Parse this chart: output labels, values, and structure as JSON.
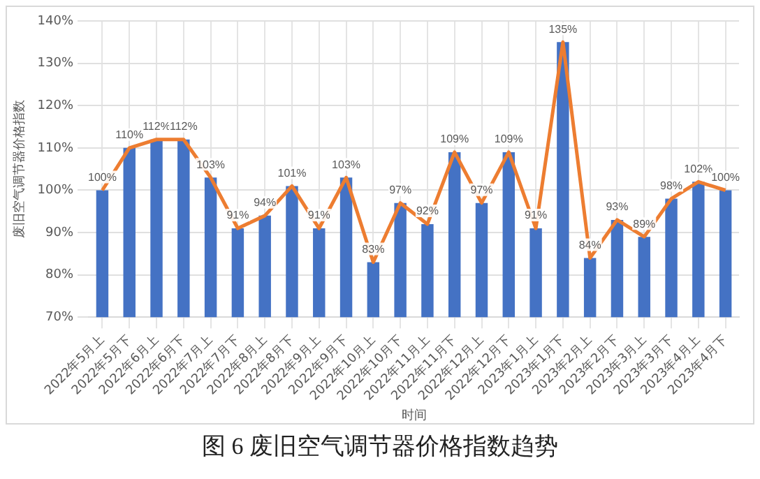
{
  "chart_data": {
    "type": "bar",
    "title": "图 6  废旧空气调节器价格指数趋势",
    "xlabel": "时间",
    "ylabel": "废旧空气调节器价格指数",
    "categories": [
      "2022年5月上",
      "2022年5月下",
      "2022年6月上",
      "2022年6月下",
      "2022年7月上",
      "2022年7月下",
      "2022年8月上",
      "2022年8月下",
      "2022年9月上",
      "2022年9月下",
      "2022年10月上",
      "2022年10月下",
      "2022年11月上",
      "2022年11月下",
      "2022年12月上",
      "2022年12月下",
      "2023年1月上",
      "2023年1月下",
      "2023年2月上",
      "2023年2月下",
      "2023年3月上",
      "2023年3月下",
      "2023年4月上",
      "2023年4月下"
    ],
    "series": [
      {
        "color": "#4472c4",
        "values": [
          100,
          110,
          112,
          112,
          103,
          91,
          94,
          101,
          91,
          103,
          83,
          97,
          92,
          109,
          97,
          109,
          91,
          135,
          84,
          93,
          89,
          98,
          102,
          100
        ]
      },
      {
        "type": "line",
        "color": "#ed7d31",
        "marker": "none",
        "values": [
          100,
          110,
          112,
          112,
          103,
          91,
          94,
          101,
          91,
          103,
          83,
          97,
          92,
          109,
          97,
          109,
          91,
          135,
          84,
          93,
          89,
          98,
          102,
          100
        ],
        "value_labels": [
          "100%",
          "110%",
          "112%",
          "112%",
          "103%",
          "91%",
          "94%",
          "101%",
          "91%",
          "103%",
          "83%",
          "97%",
          "92%",
          "109%",
          "97%",
          "109%",
          "91%",
          "135%",
          "84%",
          "93%",
          "89%",
          "98%",
          "102%",
          "100%"
        ]
      }
    ],
    "ylim": [
      70,
      140
    ],
    "yticks": [
      {
        "value": 70,
        "label": "70%"
      },
      {
        "value": 80,
        "label": "80%"
      },
      {
        "value": 90,
        "label": "90%"
      },
      {
        "value": 100,
        "label": "100%"
      },
      {
        "value": 110,
        "label": "110%"
      },
      {
        "value": 120,
        "label": "120%"
      },
      {
        "value": 130,
        "label": "130%"
      },
      {
        "value": 140,
        "label": "140%"
      }
    ],
    "grid": true,
    "legend": false
  }
}
